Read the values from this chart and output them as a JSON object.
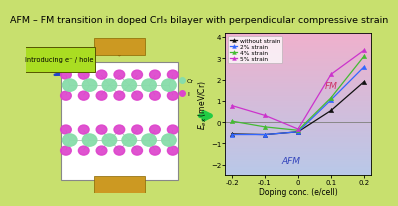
{
  "title": "AFM – FM transition in doped CrI₃ bilayer with perpendicular compressive strain",
  "title_fontsize": 6.8,
  "background_color": "#c8e06e",
  "title_bg": "#e8903a",
  "xlabel": "Doping conc. (e/cell)",
  "ylabel": "$E_{ex}$ (meV/Cr)",
  "xlim": [
    -0.22,
    0.22
  ],
  "ylim": [
    -2.5,
    4.2
  ],
  "yticks": [
    -2,
    -1,
    0,
    1,
    2,
    3,
    4
  ],
  "xticks": [
    -0.2,
    -0.1,
    0.0,
    0.1,
    0.2
  ],
  "xtick_labels": [
    "-0.2",
    "-0.1",
    "0",
    "0.1",
    "0.2"
  ],
  "series": [
    {
      "label": "without strain",
      "color": "#111111",
      "marker": "^",
      "markerfacecolor": "#111111",
      "x": [
        -0.2,
        -0.1,
        0.0,
        0.1,
        0.2
      ],
      "y": [
        -0.55,
        -0.58,
        -0.45,
        0.55,
        1.9
      ]
    },
    {
      "label": "2% strain",
      "color": "#3366ff",
      "marker": "^",
      "markerfacecolor": "#3366ff",
      "x": [
        -0.2,
        -0.1,
        0.0,
        0.1,
        0.2
      ],
      "y": [
        -0.58,
        -0.58,
        -0.45,
        1.05,
        2.6
      ]
    },
    {
      "label": "4% strain",
      "color": "#44bb33",
      "marker": "^",
      "markerfacecolor": "#44bb33",
      "x": [
        -0.2,
        -0.1,
        0.0,
        0.1,
        0.2
      ],
      "y": [
        0.05,
        -0.22,
        -0.38,
        1.15,
        3.1
      ]
    },
    {
      "label": "5% strain",
      "color": "#cc33cc",
      "marker": "^",
      "markerfacecolor": "#cc33cc",
      "x": [
        -0.2,
        -0.1,
        0.0,
        0.1,
        0.2
      ],
      "y": [
        0.78,
        0.32,
        -0.32,
        2.25,
        3.38
      ]
    }
  ],
  "fm_label": "FM",
  "afm_label": "AFM",
  "cr_color": "#88ddaa",
  "i_color": "#dd44cc",
  "intro_text": "Introducing e⁻ / hole",
  "intro_box_color": "#aadd22",
  "arrow_brown": "#8B4513",
  "arrow_green": "#22cc44"
}
